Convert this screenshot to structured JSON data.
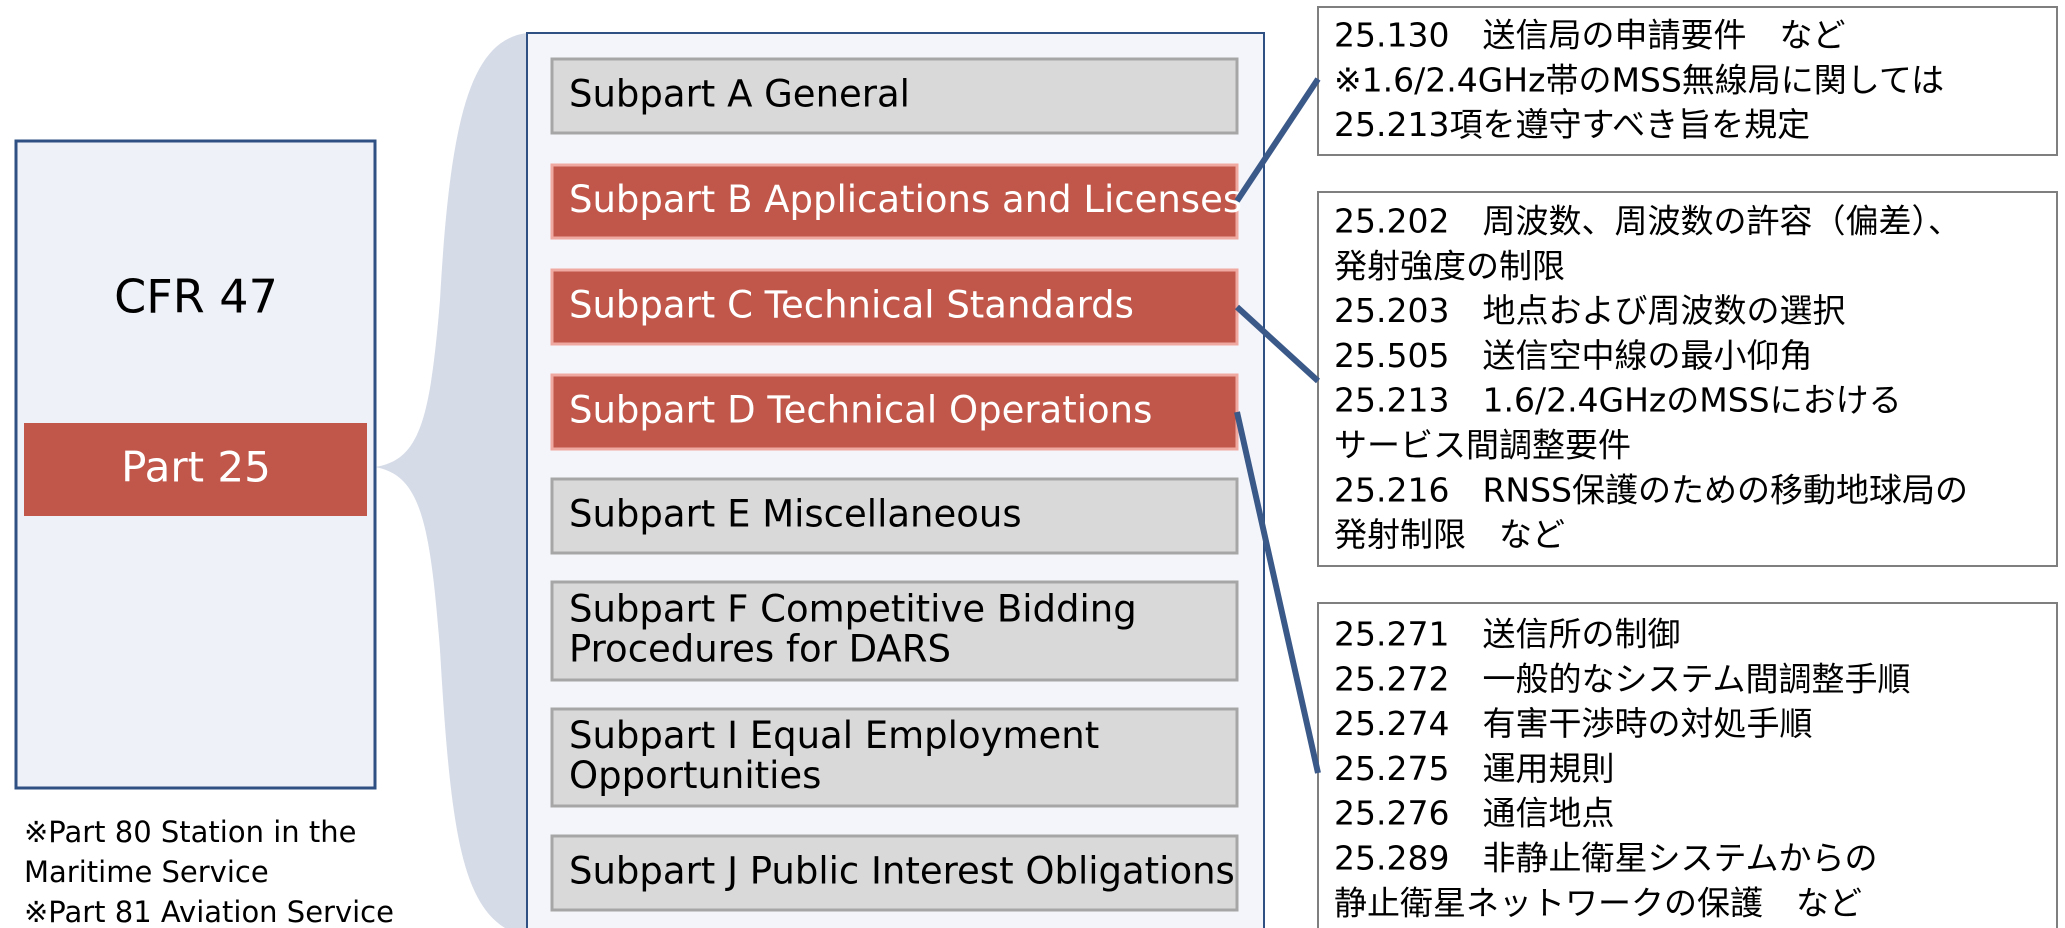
{
  "left": {
    "title": "CFR 47",
    "part": "Part 25"
  },
  "notes": [
    "※Part 80 Station in the",
    "Maritime Service",
    "※Part 81 Aviation Service"
  ],
  "subparts": [
    {
      "lines": [
        "Subpart A General"
      ],
      "highlighted": false
    },
    {
      "lines": [
        "Subpart B Applications and Licenses"
      ],
      "highlighted": true
    },
    {
      "lines": [
        "Subpart C Technical Standards"
      ],
      "highlighted": true
    },
    {
      "lines": [
        "Subpart D Technical Operations"
      ],
      "highlighted": true
    },
    {
      "lines": [
        "Subpart E Miscellaneous"
      ],
      "highlighted": false
    },
    {
      "lines": [
        "Subpart F Competitive Bidding",
        "Procedures for DARS"
      ],
      "highlighted": false
    },
    {
      "lines": [
        "Subpart I Equal Employment",
        "Opportunities"
      ],
      "highlighted": false
    },
    {
      "lines": [
        "Subpart J Public Interest Obligations"
      ],
      "highlighted": false
    }
  ],
  "details": [
    {
      "lines": [
        "25.130　送信局の申請要件　など",
        "※1.6/2.4GHz帯のMSS無線局に関しては",
        "25.213項を遵守すべき旨を規定"
      ]
    },
    {
      "lines": [
        "25.202　周波数、周波数の許容（偏差）、",
        "発射強度の制限",
        "25.203　地点および周波数の選択",
        "25.505　送信空中線の最小仰角",
        "25.213　1.6/2.4GHzのMSSにおける",
        "サービス間調整要件",
        "25.216　RNSS保護のための移動地球局の",
        "発射制限　など"
      ]
    },
    {
      "lines": [
        "25.271　送信所の制御",
        "25.272　一般的なシステム間調整手順",
        "25.274　有害干渉時の対処手順",
        "25.275　運用規則",
        "25.276　通信地点",
        "25.289　非静止衛星システムからの",
        "静止衛星ネットワークの保護　など"
      ]
    }
  ]
}
